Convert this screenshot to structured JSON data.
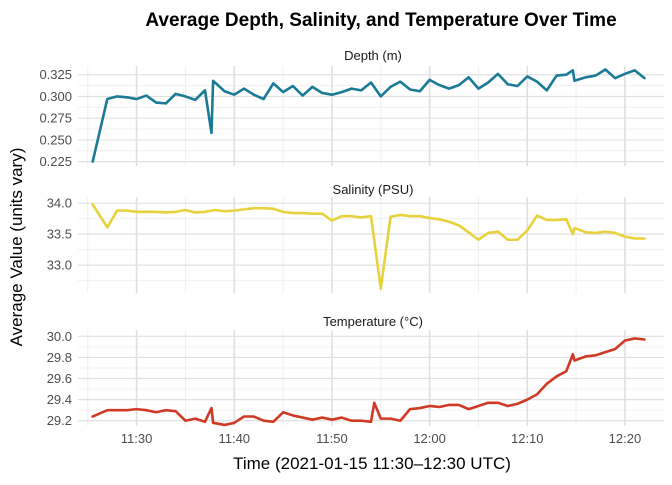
{
  "chart_data": {
    "type": "line",
    "title": "Average Depth, Salinity, and Temperature Over Time",
    "xlabel": "Time (2021-01-15 11:30–12:30 UTC)",
    "ylabel": "Average Value (units vary)",
    "x_unit": "minutes",
    "x_range": [
      "11:24",
      "12:24"
    ],
    "x_ticks": [
      "11:30",
      "11:40",
      "11:50",
      "12:00",
      "12:10",
      "12:20"
    ],
    "grid": true,
    "legend": "none",
    "panels": [
      {
        "title": "Depth (m)",
        "color": "#1b7a96",
        "ylim": [
          0.22,
          0.335
        ],
        "y_ticks": [
          "0.225",
          "0.250",
          "0.275",
          "0.300",
          "0.325"
        ],
        "points": [
          [
            "11:25:30",
            0.225
          ],
          [
            "11:27",
            0.297
          ],
          [
            "11:28",
            0.3
          ],
          [
            "11:29",
            0.299
          ],
          [
            "11:30",
            0.297
          ],
          [
            "11:31",
            0.301
          ],
          [
            "11:32",
            0.293
          ],
          [
            "11:33",
            0.292
          ],
          [
            "11:34",
            0.303
          ],
          [
            "11:35",
            0.3
          ],
          [
            "11:36",
            0.296
          ],
          [
            "11:37",
            0.307
          ],
          [
            "11:37:40",
            0.258
          ],
          [
            "11:37:50",
            0.318
          ],
          [
            "11:39",
            0.306
          ],
          [
            "11:40",
            0.302
          ],
          [
            "11:41",
            0.309
          ],
          [
            "11:42",
            0.302
          ],
          [
            "11:43",
            0.297
          ],
          [
            "11:44",
            0.315
          ],
          [
            "11:45",
            0.305
          ],
          [
            "11:46",
            0.312
          ],
          [
            "11:47",
            0.301
          ],
          [
            "11:48",
            0.311
          ],
          [
            "11:49",
            0.304
          ],
          [
            "11:50",
            0.302
          ],
          [
            "11:51",
            0.305
          ],
          [
            "11:52",
            0.309
          ],
          [
            "11:53",
            0.307
          ],
          [
            "11:54",
            0.316
          ],
          [
            "11:55",
            0.3
          ],
          [
            "11:56",
            0.311
          ],
          [
            "11:57",
            0.317
          ],
          [
            "11:58",
            0.308
          ],
          [
            "11:59",
            0.306
          ],
          [
            "12:00",
            0.319
          ],
          [
            "12:01",
            0.313
          ],
          [
            "12:02",
            0.309
          ],
          [
            "12:03",
            0.313
          ],
          [
            "12:04",
            0.322
          ],
          [
            "12:05",
            0.309
          ],
          [
            "12:06",
            0.316
          ],
          [
            "12:07",
            0.326
          ],
          [
            "12:08",
            0.314
          ],
          [
            "12:09",
            0.312
          ],
          [
            "12:10",
            0.323
          ],
          [
            "12:11",
            0.317
          ],
          [
            "12:12",
            0.307
          ],
          [
            "12:13",
            0.324
          ],
          [
            "12:14",
            0.325
          ],
          [
            "12:14:40",
            0.33
          ],
          [
            "12:14:50",
            0.318
          ],
          [
            "12:16",
            0.322
          ],
          [
            "12:17",
            0.324
          ],
          [
            "12:18",
            0.331
          ],
          [
            "12:19",
            0.321
          ],
          [
            "12:20",
            0.326
          ],
          [
            "12:21",
            0.33
          ],
          [
            "12:22",
            0.321
          ]
        ]
      },
      {
        "title": "Salinity (PSU)",
        "color": "#e8d23c",
        "ylim": [
          32.55,
          34.1
        ],
        "y_ticks": [
          "33.0",
          "33.5",
          "34.0"
        ],
        "points": [
          [
            "11:25:30",
            33.98
          ],
          [
            "11:27",
            33.61
          ],
          [
            "11:28",
            33.88
          ],
          [
            "11:29",
            33.88
          ],
          [
            "11:30",
            33.86
          ],
          [
            "11:31",
            33.86
          ],
          [
            "11:32",
            33.86
          ],
          [
            "11:33",
            33.85
          ],
          [
            "11:34",
            33.86
          ],
          [
            "11:35",
            33.89
          ],
          [
            "11:36",
            33.85
          ],
          [
            "11:37",
            33.86
          ],
          [
            "11:38",
            33.89
          ],
          [
            "11:39",
            33.87
          ],
          [
            "11:40",
            33.88
          ],
          [
            "11:41",
            33.9
          ],
          [
            "11:42",
            33.92
          ],
          [
            "11:43",
            33.92
          ],
          [
            "11:44",
            33.91
          ],
          [
            "11:45",
            33.86
          ],
          [
            "11:46",
            33.84
          ],
          [
            "11:47",
            33.84
          ],
          [
            "11:48",
            33.83
          ],
          [
            "11:49",
            33.83
          ],
          [
            "11:50",
            33.72
          ],
          [
            "11:51",
            33.79
          ],
          [
            "11:52",
            33.79
          ],
          [
            "11:53",
            33.77
          ],
          [
            "11:54",
            33.79
          ],
          [
            "11:55",
            32.62
          ],
          [
            "11:56",
            33.78
          ],
          [
            "11:57",
            33.81
          ],
          [
            "11:58",
            33.79
          ],
          [
            "11:59",
            33.79
          ],
          [
            "12:00",
            33.76
          ],
          [
            "12:01",
            33.74
          ],
          [
            "12:02",
            33.7
          ],
          [
            "12:03",
            33.64
          ],
          [
            "12:04",
            33.53
          ],
          [
            "12:05",
            33.41
          ],
          [
            "12:06",
            33.52
          ],
          [
            "12:07",
            33.54
          ],
          [
            "12:08",
            33.41
          ],
          [
            "12:09",
            33.41
          ],
          [
            "12:10",
            33.56
          ],
          [
            "12:11",
            33.8
          ],
          [
            "12:12",
            33.73
          ],
          [
            "12:13",
            33.73
          ],
          [
            "12:14",
            33.74
          ],
          [
            "12:14:40",
            33.5
          ],
          [
            "12:14:50",
            33.6
          ],
          [
            "12:16",
            33.53
          ],
          [
            "12:17",
            33.52
          ],
          [
            "12:18",
            33.54
          ],
          [
            "12:19",
            33.52
          ],
          [
            "12:20",
            33.46
          ],
          [
            "12:21",
            33.43
          ],
          [
            "12:22",
            33.43
          ]
        ]
      },
      {
        "title": "Temperature (°C)",
        "color": "#d03a25",
        "ylim": [
          29.15,
          30.06
        ],
        "y_ticks": [
          "29.2",
          "29.4",
          "29.6",
          "29.8",
          "30.0"
        ],
        "points": [
          [
            "11:25:30",
            29.24
          ],
          [
            "11:27",
            29.3
          ],
          [
            "11:28",
            29.3
          ],
          [
            "11:29",
            29.3
          ],
          [
            "11:30",
            29.31
          ],
          [
            "11:31",
            29.3
          ],
          [
            "11:32",
            29.28
          ],
          [
            "11:33",
            29.3
          ],
          [
            "11:34",
            29.29
          ],
          [
            "11:35",
            29.2
          ],
          [
            "11:36",
            29.22
          ],
          [
            "11:37",
            29.19
          ],
          [
            "11:37:40",
            29.32
          ],
          [
            "11:37:50",
            29.18
          ],
          [
            "11:39",
            29.16
          ],
          [
            "11:40",
            29.18
          ],
          [
            "11:41",
            29.24
          ],
          [
            "11:42",
            29.24
          ],
          [
            "11:43",
            29.2
          ],
          [
            "11:44",
            29.19
          ],
          [
            "11:45",
            29.28
          ],
          [
            "11:46",
            29.25
          ],
          [
            "11:47",
            29.23
          ],
          [
            "11:48",
            29.21
          ],
          [
            "11:49",
            29.23
          ],
          [
            "11:50",
            29.21
          ],
          [
            "11:51",
            29.23
          ],
          [
            "11:52",
            29.2
          ],
          [
            "11:53",
            29.2
          ],
          [
            "11:54",
            29.19
          ],
          [
            "11:54:20",
            29.37
          ],
          [
            "11:55",
            29.22
          ],
          [
            "11:56",
            29.22
          ],
          [
            "11:57",
            29.2
          ],
          [
            "11:58",
            29.31
          ],
          [
            "11:59",
            29.32
          ],
          [
            "12:00",
            29.34
          ],
          [
            "12:01",
            29.33
          ],
          [
            "12:02",
            29.35
          ],
          [
            "12:03",
            29.35
          ],
          [
            "12:04",
            29.31
          ],
          [
            "12:05",
            29.34
          ],
          [
            "12:06",
            29.37
          ],
          [
            "12:07",
            29.37
          ],
          [
            "12:08",
            29.34
          ],
          [
            "12:09",
            29.36
          ],
          [
            "12:10",
            29.4
          ],
          [
            "12:11",
            29.45
          ],
          [
            "12:12",
            29.55
          ],
          [
            "12:13",
            29.62
          ],
          [
            "12:14",
            29.67
          ],
          [
            "12:14:40",
            29.83
          ],
          [
            "12:14:50",
            29.77
          ],
          [
            "12:16",
            29.81
          ],
          [
            "12:17",
            29.82
          ],
          [
            "12:18",
            29.85
          ],
          [
            "12:19",
            29.88
          ],
          [
            "12:20",
            29.96
          ],
          [
            "12:21",
            29.98
          ],
          [
            "12:22",
            29.97
          ]
        ]
      }
    ]
  }
}
